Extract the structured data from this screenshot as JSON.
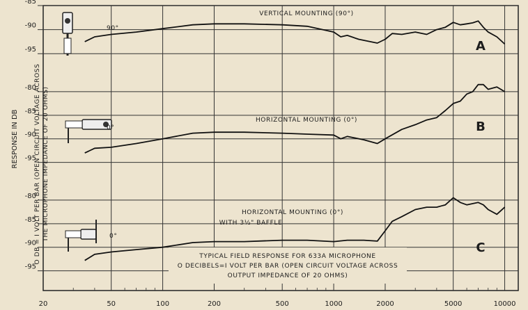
{
  "chart_data": {
    "type": "line",
    "title": "",
    "ylabel": "RESPONSE IN DB",
    "ylabel2": "O DB = I VOLT PER BAR (OPEN CIRCUIT VOLTAGE ACROSS THE MICROPHONE IMPEDANCE OF 20 OHMS)",
    "x_scale": "log",
    "xlim": [
      20,
      12000
    ],
    "x_ticks": [
      20,
      50,
      100,
      200,
      500,
      1000,
      2000,
      5000,
      10000
    ],
    "x_tick_labels": [
      "20",
      "50",
      "100",
      "200",
      "500",
      "1000",
      "2000",
      "5000",
      "10000"
    ],
    "grid": true,
    "panels": [
      {
        "letter": "A",
        "title": "VERTICAL MOUNTING (90°)",
        "curve_label": "90°",
        "ylim": [
          -98,
          -85
        ],
        "y_ticks": [
          -85,
          -90,
          -95
        ],
        "y_tick_labels": [
          "-85",
          "-90",
          "-95"
        ],
        "x": [
          35,
          40,
          50,
          70,
          100,
          150,
          200,
          300,
          500,
          700,
          1000,
          1100,
          1200,
          1400,
          1800,
          2000,
          2200,
          2500,
          3000,
          3500,
          4000,
          4500,
          5000,
          5500,
          6000,
          6500,
          7000,
          7500,
          8000,
          9000,
          10000
        ],
        "y": [
          -92.5,
          -91.5,
          -91,
          -90.5,
          -89.8,
          -89,
          -88.8,
          -88.8,
          -89,
          -89.3,
          -90.5,
          -91.5,
          -91.2,
          -92,
          -92.8,
          -92,
          -90.8,
          -91,
          -90.5,
          -91,
          -90,
          -89.5,
          -88.5,
          -89,
          -88.8,
          -88.6,
          -88.2,
          -89.5,
          -90.5,
          -91.5,
          -93
        ]
      },
      {
        "letter": "B",
        "title": "HORIZONTAL MOUNTING (0°)",
        "curve_label": "0°",
        "ylim": [
          -98,
          -75
        ],
        "y_ticks": [
          -80,
          -85,
          -90,
          -95
        ],
        "y_tick_labels": [
          "-80",
          "-85",
          "-90",
          "-95"
        ],
        "x": [
          35,
          40,
          50,
          70,
          100,
          150,
          200,
          300,
          500,
          700,
          1000,
          1100,
          1200,
          1500,
          1800,
          2000,
          2500,
          3000,
          3500,
          4000,
          4500,
          5000,
          5500,
          6000,
          6500,
          7000,
          7500,
          8000,
          9000,
          10000
        ],
        "y": [
          -93,
          -92,
          -91.8,
          -91,
          -90,
          -88.8,
          -88.6,
          -88.6,
          -88.8,
          -89,
          -89.2,
          -90,
          -89.5,
          -90.2,
          -91,
          -90,
          -88,
          -87,
          -86,
          -85.5,
          -84,
          -82.5,
          -82,
          -80.5,
          -80,
          -78.5,
          -78.5,
          -79.5,
          -79,
          -80
        ]
      },
      {
        "letter": "C",
        "title": "HORIZONTAL MOUNTING (0°)",
        "subtitle": "WITH 3½\" BAFFLE",
        "curve_label": "0°",
        "ylim": [
          -98,
          -75
        ],
        "y_ticks": [
          -80,
          -85,
          -90,
          -95
        ],
        "y_tick_labels": [
          "-80",
          "-85",
          "-90",
          "-95"
        ],
        "x": [
          35,
          40,
          50,
          70,
          100,
          150,
          200,
          300,
          500,
          700,
          1000,
          1200,
          1500,
          1800,
          2000,
          2200,
          2500,
          3000,
          3500,
          4000,
          4500,
          5000,
          5500,
          6000,
          7000,
          7500,
          8000,
          9000,
          10000
        ],
        "y": [
          -92.8,
          -91.5,
          -91,
          -90.5,
          -90,
          -89,
          -88.8,
          -88.8,
          -88.5,
          -88.5,
          -88.8,
          -88.5,
          -88.5,
          -88.7,
          -86.5,
          -84.5,
          -83.5,
          -82,
          -81.5,
          -81.5,
          -81,
          -79.5,
          -80.5,
          -81,
          -80.5,
          -81,
          -82,
          -83,
          -81.5
        ]
      }
    ],
    "annotation": [
      "TYPICAL FIELD RESPONSE FOR 633A MICROPHONE",
      "O DECIBELS=I VOLT PER BAR (OPEN CIRCUIT VOLTAGE ACROSS",
      "OUTPUT IMPEDANCE OF 20 OHMS)"
    ]
  }
}
